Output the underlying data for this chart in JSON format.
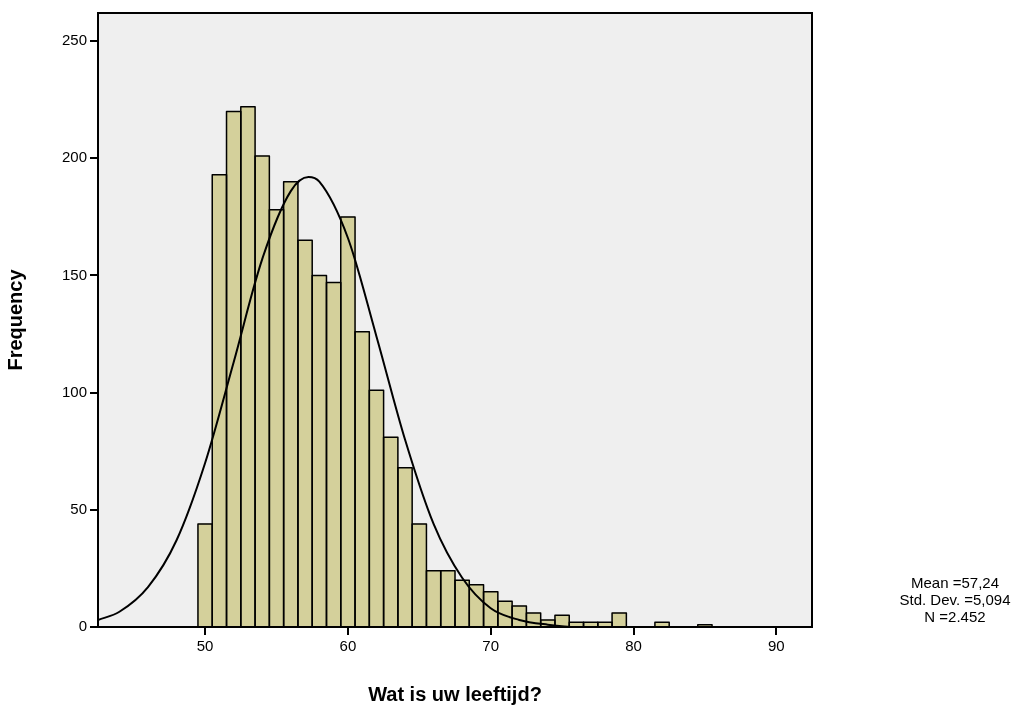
{
  "chart_data": {
    "type": "histogram",
    "xlabel": "Wat is uw leeftijd?",
    "ylabel": "Frequency",
    "xlim": [
      42.5,
      92.5
    ],
    "xticks": [
      50,
      60,
      70,
      80,
      90
    ],
    "ylim": [
      0,
      262
    ],
    "yticks": [
      0,
      50,
      100,
      150,
      200,
      250
    ],
    "series": [
      {
        "type": "histogram",
        "color": "#d4d09b",
        "bins": [
          49.5,
          50.5,
          51.5,
          52.5,
          53.5,
          54.5,
          55.5,
          56.5,
          57.5,
          58.5,
          59.5,
          60.5,
          61.5,
          62.5,
          63.5,
          64.5,
          65.5,
          66.5,
          67.5,
          68.5,
          69.5,
          70.5,
          71.5,
          72.5,
          73.5,
          74.5,
          75.5,
          76.5,
          77.5,
          78.5,
          79.5,
          80.5,
          81.5,
          82.5,
          83.5,
          84.5,
          85.5
        ],
        "values": [
          44,
          193,
          220,
          222,
          201,
          178,
          190,
          165,
          150,
          147,
          175,
          126,
          101,
          81,
          68,
          44,
          24,
          24,
          20,
          18,
          15,
          11,
          9,
          6,
          3,
          5,
          2,
          2,
          2,
          6,
          0,
          0,
          2,
          0,
          0,
          1
        ]
      },
      {
        "type": "line",
        "color": "#000000",
        "x": [
          42.5,
          44,
          46,
          48,
          50,
          52,
          54,
          56,
          57.24,
          58,
          60,
          62,
          64,
          66,
          68,
          70,
          72,
          74,
          76,
          80,
          92.5
        ],
        "values": [
          3,
          6.5,
          17,
          37,
          70,
          113,
          157,
          186,
          192,
          190,
          166,
          124,
          80,
          44,
          21,
          8,
          3,
          1,
          0,
          0,
          0
        ]
      }
    ],
    "annotations": [
      "Mean =57,24",
      "Std. Dev. =5,094",
      "N =2.452"
    ]
  }
}
